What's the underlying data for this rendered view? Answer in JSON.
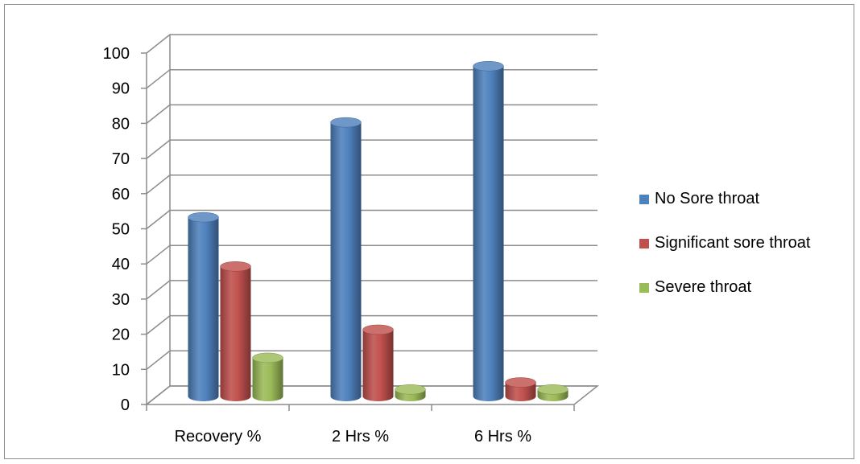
{
  "chart_data": {
    "type": "bar",
    "style": "3d-clustered-cylinder",
    "categories": [
      "Recovery %",
      "2 Hrs %",
      "6 Hrs %"
    ],
    "series": [
      {
        "name": "No Sore throat",
        "color": "#4f81bd",
        "values": [
          51,
          78,
          94
        ]
      },
      {
        "name": "Significant sore throat",
        "color": "#c0504d",
        "values": [
          37,
          19,
          4
        ]
      },
      {
        "name": "Severe throat",
        "color": "#9bbb59",
        "values": [
          11,
          2,
          2
        ]
      }
    ],
    "ylim": [
      0,
      100
    ],
    "yticks": [
      "0",
      "10",
      "20",
      "30",
      "40",
      "50",
      "60",
      "70",
      "80",
      "90",
      "100"
    ],
    "grid": true,
    "legend": "right",
    "title": "",
    "xlabel": "",
    "ylabel": ""
  }
}
